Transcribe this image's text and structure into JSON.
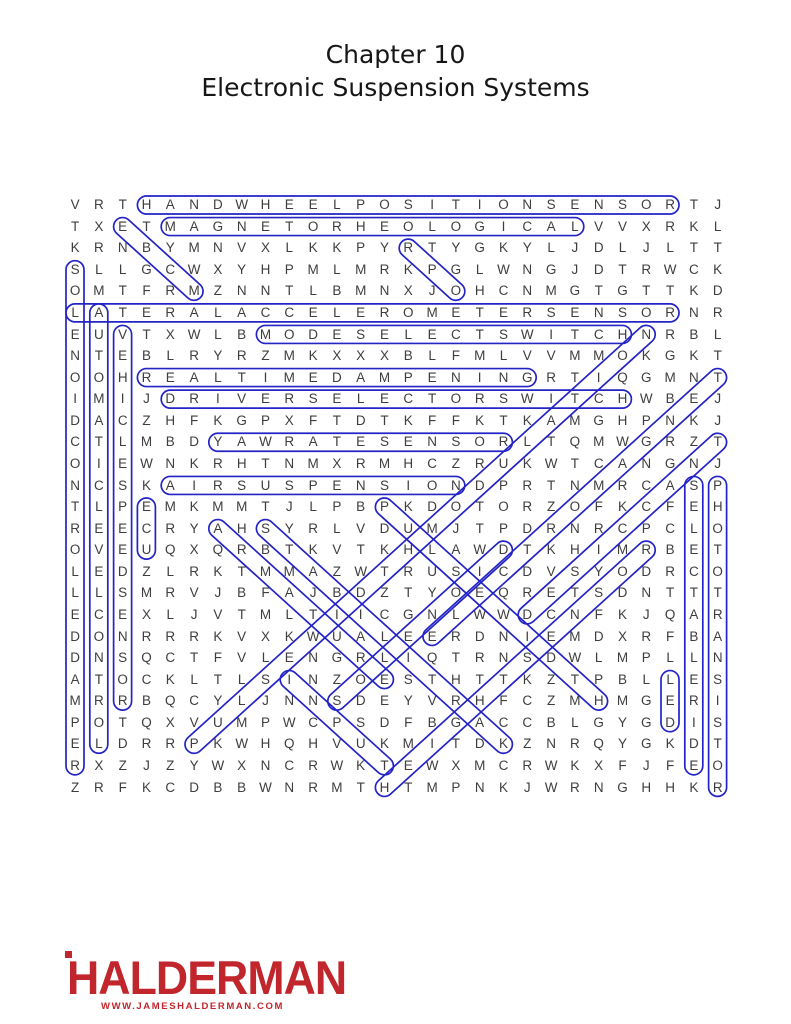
{
  "title": {
    "line1": "Chapter 10",
    "line2": "Electronic Suspension Systems"
  },
  "puzzle": {
    "rows": 28,
    "cols": 28,
    "letter_color": "#3e3e3e",
    "highlight_color": "#2323c6",
    "grid": [
      "VRTHANDWHEELPOSITIONSENSORTJ",
      "TXETMAGNETORHEOLOGICALVVXRKL",
      "KRNBYMNVXLKKPYRTYGKYLJDLJLTT",
      "SLLGCWXYHPMLMRKPGLWNGJDTRWCK",
      "OMTFRMZNNTLBMNXJOHCNMGTGTTKD",
      "LATERALACCELEROMETERSENSORNR",
      "EUVTXWLBMODESELECTSWITCHNRBL",
      "NTEBLRYRZMKXXXBLFMLVVMMOKGKT",
      "OOHREALTIMEDAMPENINGRTIQGMNT",
      "IMIJDRIVERSELECTORSWITCHWBEJ",
      "DACZHFKGPXFTDTKFFKTKAMGHPNKJ",
      "CTLMBDYAWRATESENSORLTQMWGRZT",
      "OIEWNKRHTNMXRMHCZRUKWTCANGNJ",
      "NCSKAIRSUSPENSIONDPRTNMRCASP",
      "TLPEMKMMTJLPBPKDOTORZOFKCFEH",
      "REECRYAHSYRLVDUMJTPDRNRCPCLO",
      "OVEUQXQRBTKVTKHLAWDTKHIMRBET",
      "LEDZLRKTMMAZWTRUSICDVSYODRCO",
      "LLSMRVJBFAJBDZTYOEQRETSDNTTT",
      "ECEXLJVTMLTIICGNLWWDCNFKJQAR",
      "DONRRRKVXKWUALEERDNIEMDXRFBA",
      "DNSQCTFVLENGRLIQTRNSDWLMPLLN",
      "ATOCKLTLSINZOESTHTTKZTPBLLES",
      "MRRBQCYLJNNSDEYVRHFCZMHMGERI",
      "POTQXVUMPWCPSDFBGACCBLGYGDIS",
      "ELDRRPKWHQHVUKMITDKZNRQYGKDT",
      "RXZJZYWXNCRWKTEWXMCRWKXFJFEO",
      "ZRFKCDBBWNRMTHTMPNKJWRNGHHKR"
    ],
    "found_words": [
      {
        "word": "HANDWHEELPOSITIONSENSOR",
        "row_start": 1,
        "col_start": 4,
        "row_end": 1,
        "col_end": 26
      },
      {
        "word": "MAGNETORHEOLOGICAL",
        "row_start": 2,
        "col_start": 5,
        "row_end": 2,
        "col_end": 22
      },
      {
        "word": "LATERALACCELEROMETERSENSOR",
        "row_start": 6,
        "col_start": 1,
        "row_end": 6,
        "col_end": 26
      },
      {
        "word": "MODESELECTSWITCH",
        "row_start": 7,
        "col_start": 9,
        "row_end": 7,
        "col_end": 24
      },
      {
        "word": "REALTIMEDAMPENING",
        "row_start": 9,
        "col_start": 4,
        "row_end": 9,
        "col_end": 20
      },
      {
        "word": "DRIVERSELECTORSWITCH",
        "row_start": 10,
        "col_start": 5,
        "row_end": 10,
        "col_end": 24
      },
      {
        "word": "YAWRATESENSOR",
        "row_start": 12,
        "col_start": 7,
        "row_end": 12,
        "col_end": 19
      },
      {
        "word": "AIRSUSPENSION",
        "row_start": 14,
        "col_start": 5,
        "row_end": 14,
        "col_end": 17
      },
      {
        "word": "SOLENOIDCONTROLLEDDAMPER",
        "row_start": 4,
        "col_start": 1,
        "row_end": 27,
        "col_end": 1
      },
      {
        "word": "AUTOMATICLEVELCONTROL",
        "row_start": 6,
        "col_start": 2,
        "row_end": 26,
        "col_end": 2
      },
      {
        "word": "VEHICLESPEEDSENSOR",
        "row_start": 7,
        "col_start": 3,
        "row_end": 24,
        "col_end": 3
      },
      {
        "word": "ECU",
        "row_start": 15,
        "col_start": 4,
        "row_end": 17,
        "col_end": 4
      },
      {
        "word": "LED",
        "row_start": 23,
        "col_start": 26,
        "row_end": 25,
        "col_end": 26
      },
      {
        "word": "SELECTABLERIDE",
        "row_start": 14,
        "col_start": 27,
        "row_end": 27,
        "col_end": 27
      },
      {
        "word": "PHOTOTRANSISTOR",
        "row_start": 14,
        "col_start": 28,
        "row_end": 28,
        "col_end": 28
      },
      {
        "word": "EBCM",
        "row_start": 2,
        "col_start": 3,
        "row_end": 5,
        "col_end": 6
      },
      {
        "word": "RPO",
        "row_start": 3,
        "col_start": 15,
        "row_end": 5,
        "col_end": 17
      },
      {
        "word": "ARMATURE",
        "row_start": 16,
        "col_start": 7,
        "row_end": 23,
        "col_end": 14
      },
      {
        "word": "STABILITRAK",
        "row_start": 16,
        "col_start": 9,
        "row_end": 26,
        "col_end": 19
      },
      {
        "word": "PULSEWIDTH",
        "row_start": 15,
        "col_start": 14,
        "row_end": 24,
        "col_end": 23
      },
      {
        "word": "INPUT",
        "row_start": 23,
        "col_start": 10,
        "row_end": 27,
        "col_end": 14
      },
      {
        "word": "ELECTROMAGNET",
        "row_start": 21,
        "col_start": 16,
        "row_end": 9,
        "col_end": 28
      },
      {
        "word": "PULSEWIDTHMODULATION",
        "row_start": 26,
        "col_start": 6,
        "row_end": 7,
        "col_end": 25
      },
      {
        "word": "SOLENOID",
        "row_start": 24,
        "col_start": 12,
        "row_end": 17,
        "col_end": 19
      },
      {
        "word": "HEIGHTSENSOR",
        "row_start": 28,
        "col_start": 14,
        "row_end": 17,
        "col_end": 25
      },
      {
        "word": "DESICCANT",
        "row_start": 20,
        "col_start": 20,
        "row_end": 12,
        "col_end": 28
      }
    ]
  },
  "footer": {
    "logo_text": "HALDERMAN",
    "logo_url_text": "WWW.JAMESHALDERMAN.COM",
    "logo_color": "#c0262c"
  }
}
